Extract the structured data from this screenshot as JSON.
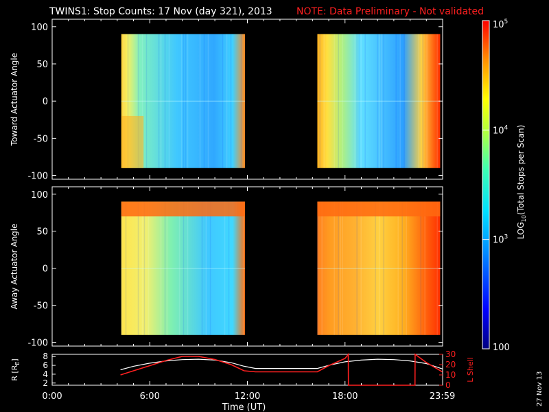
{
  "header": {
    "title": "TWINS1: Stop Counts: 17 Nov (day 321), 2013",
    "note": "NOTE: Data Preliminary - Not validated"
  },
  "stamp": "27 Nov 13",
  "colors": {
    "background": "#000000",
    "axis": "#ffffff",
    "note": "#ff2020",
    "lshell": "#ff2020",
    "r_line": "#ffffff"
  },
  "chart_data": [
    {
      "type": "heatmap",
      "ylabel": "Toward Actuator Angle",
      "ylim": [
        -105,
        110
      ],
      "yticks": [
        -100,
        -50,
        0,
        50,
        100
      ],
      "xlim": [
        0,
        24
      ],
      "data_segments": [
        {
          "start": 4.25,
          "end": 11.85
        },
        {
          "start": 16.3,
          "end": 23.85
        }
      ],
      "angle_range": [
        -90,
        90
      ],
      "colormap": "rainbow (log scale)"
    },
    {
      "type": "heatmap",
      "ylabel": "Away Actuator Angle",
      "ylim": [
        -105,
        110
      ],
      "yticks": [
        -100,
        -50,
        0,
        50,
        100
      ],
      "xlim": [
        0,
        24
      ],
      "data_segments": [
        {
          "start": 4.25,
          "end": 11.85
        },
        {
          "start": 16.3,
          "end": 23.85
        }
      ],
      "angle_range": [
        -90,
        90
      ],
      "colormap": "rainbow (log scale)"
    },
    {
      "type": "line",
      "ylabel": "R [R",
      "ylabel_sub": "E",
      "ylabel_tail": "]",
      "ylim": [
        1.5,
        8.5
      ],
      "yticks": [
        2,
        4,
        6,
        8
      ],
      "y2label": "L Shell",
      "y2lim": [
        0,
        30
      ],
      "y2ticks": [
        0,
        10,
        20,
        30
      ],
      "xlabel": "Time (UT)",
      "xlim": [
        0,
        24
      ],
      "xticks": [
        {
          "value": 0,
          "label": "0:00"
        },
        {
          "value": 6,
          "label": "6:00"
        },
        {
          "value": 12,
          "label": "12:00"
        },
        {
          "value": 18,
          "label": "18:00"
        },
        {
          "value": 23.98,
          "label": "23:59"
        }
      ],
      "series": [
        {
          "axis": "left",
          "x": [
            4.2,
            5.0,
            6.0,
            7.0,
            8.0,
            9.0,
            10.0,
            11.0,
            11.8,
            12.5,
            14.0,
            16.3,
            17.0,
            18.0,
            19.0,
            20.0,
            21.0,
            22.0,
            23.0,
            23.98
          ],
          "y": [
            5.0,
            5.8,
            6.5,
            7.0,
            7.3,
            7.4,
            7.2,
            6.6,
            5.8,
            5.3,
            5.3,
            5.3,
            6.0,
            6.8,
            7.2,
            7.4,
            7.3,
            7.0,
            6.4,
            5.2
          ]
        },
        {
          "axis": "right",
          "x": [
            4.2,
            5.0,
            6.0,
            7.0,
            8.0,
            9.0,
            10.0,
            11.0,
            11.8,
            12.5,
            14.0,
            16.3,
            17.0,
            18.0,
            18.2,
            18.21,
            21.0,
            22.3,
            22.31,
            23.0,
            23.98
          ],
          "y": [
            10.0,
            14.0,
            19.0,
            24.0,
            28.0,
            28.0,
            25.0,
            20.0,
            14.0,
            13.0,
            13.0,
            13.0,
            19.0,
            26.0,
            30.0,
            0.0,
            0.0,
            0.0,
            30.0,
            22.0,
            13.0
          ]
        }
      ]
    }
  ],
  "colorbar": {
    "label_prefix": "LOG",
    "label_sub": "10",
    "label_suffix": "(Total Stops per Scan)",
    "ticks": [
      {
        "value": 100,
        "label": "100"
      },
      {
        "value": 1000,
        "label": "10",
        "sup": "3"
      },
      {
        "value": 10000,
        "label": "10",
        "sup": "4"
      },
      {
        "value": 100000,
        "label": "10",
        "sup": "5"
      }
    ],
    "range": [
      100,
      100000
    ]
  }
}
